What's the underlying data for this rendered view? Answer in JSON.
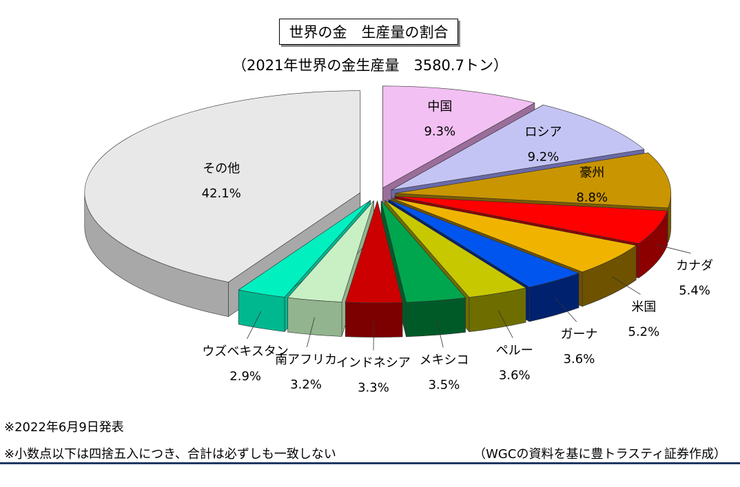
{
  "chart_data": {
    "type": "pie",
    "title": "世界の金　生産量の割合",
    "subtitle": "（2021年世界の金生産量　3580.7トン）",
    "slices": [
      {
        "label": "中国",
        "value": 9.3,
        "value_label": "9.3%",
        "color": "#f2c0f2",
        "side": "#9a6e9a"
      },
      {
        "label": "ロシア",
        "value": 9.2,
        "value_label": "9.2%",
        "color": "#c4c4f4",
        "side": "#6a6aa8"
      },
      {
        "label": "豪州",
        "value": 8.8,
        "value_label": "8.8%",
        "color": "#c99500",
        "side": "#7a5c00"
      },
      {
        "label": "カナダ",
        "value": 5.4,
        "value_label": "5.4%",
        "color": "#ff0000",
        "side": "#8c0000"
      },
      {
        "label": "米国",
        "value": 5.2,
        "value_label": "5.2%",
        "color": "#f0b400",
        "side": "#6e5200"
      },
      {
        "label": "ガーナ",
        "value": 3.6,
        "value_label": "3.6%",
        "color": "#0055ee",
        "side": "#00226e"
      },
      {
        "label": "ペルー",
        "value": 3.6,
        "value_label": "3.6%",
        "color": "#c8c800",
        "side": "#6e6e00"
      },
      {
        "label": "メキシコ",
        "value": 3.5,
        "value_label": "3.5%",
        "color": "#00a64d",
        "side": "#005a28"
      },
      {
        "label": "インドネシア",
        "value": 3.3,
        "value_label": "3.3%",
        "color": "#cc0000",
        "side": "#7c0000"
      },
      {
        "label": "南アフリカ",
        "value": 3.2,
        "value_label": "3.2%",
        "color": "#c8f0c4",
        "side": "#92b48e"
      },
      {
        "label": "ウズベキスタン",
        "value": 2.9,
        "value_label": "2.9%",
        "color": "#00f0c0",
        "side": "#00b890"
      },
      {
        "label": "その他",
        "value": 42.1,
        "value_label": "42.1%",
        "color": "#e8e8e8",
        "side": "#a8a8a8"
      }
    ]
  },
  "notes": {
    "date": "※2022年6月9日発表",
    "rounding": "※小数点以下は四捨五入につき、合計は必ずしも一致しない",
    "source": "（WGCの資料を基に豊トラスティ証券作成）"
  }
}
